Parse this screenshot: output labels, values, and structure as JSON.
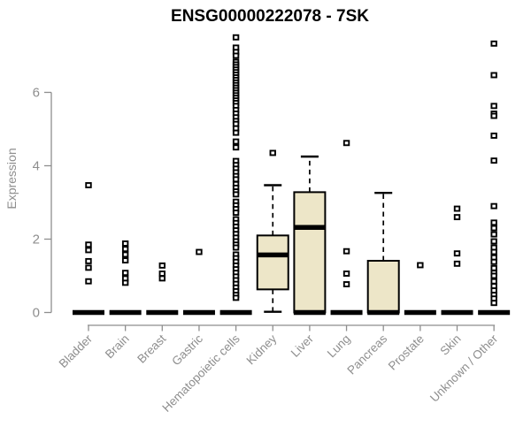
{
  "page": {
    "background": "#ffffff"
  },
  "chart_data": {
    "type": "boxplot",
    "title": "ENSG00000222078 - 7SK",
    "ylabel": "Expression",
    "xlabel": "",
    "ylim": [
      0,
      7.55
    ],
    "yticks": [
      0,
      2,
      4,
      6
    ],
    "grid": false,
    "legend": null,
    "colors": {
      "box_fill": "#EDE6C8",
      "box_stroke": "#000000",
      "median": "#000000",
      "whisker": "#000000",
      "outlier_fill": "#ffffff",
      "outlier_stroke": "#000000",
      "axis": "#8e8e8e",
      "tick_label": "#8e8e8e",
      "title": "#000000"
    },
    "categories": [
      "Bladder",
      "Brain",
      "Breast",
      "Gastric",
      "Hematopoietic cells",
      "Kidney",
      "Liver",
      "Lung",
      "Pancreas",
      "Prostate",
      "Skin",
      "Unknown / Other"
    ],
    "series": [
      {
        "name": "Bladder",
        "lo": 0,
        "q1": 0,
        "median": 0,
        "q3": 0,
        "hi": 0,
        "outliers": [
          3.47,
          1.85,
          1.7,
          1.4,
          1.22,
          0.85
        ]
      },
      {
        "name": "Brain",
        "lo": 0,
        "q1": 0,
        "median": 0,
        "q3": 0,
        "hi": 0,
        "outliers": [
          1.88,
          1.73,
          1.58,
          1.42,
          1.08,
          0.93,
          0.81
        ]
      },
      {
        "name": "Breast",
        "lo": 0,
        "q1": 0,
        "median": 0,
        "q3": 0,
        "hi": 0,
        "outliers": [
          1.28,
          1.06,
          0.93
        ]
      },
      {
        "name": "Gastric",
        "lo": 0,
        "q1": 0,
        "median": 0,
        "q3": 0,
        "hi": 0,
        "outliers": [
          1.65
        ]
      },
      {
        "name": "Hematopoietic cells",
        "lo": 0,
        "q1": 0,
        "median": 0,
        "q3": 0,
        "hi": 0,
        "outliers": [
          7.5,
          7.22,
          7.1,
          7.0,
          6.83,
          6.76,
          6.69,
          6.62,
          6.55,
          6.48,
          6.41,
          6.34,
          6.27,
          6.2,
          6.13,
          6.06,
          5.99,
          5.92,
          5.85,
          5.78,
          5.71,
          5.63,
          5.52,
          5.42,
          5.32,
          5.22,
          5.14,
          5.02,
          4.9,
          4.66,
          4.5,
          4.13,
          4.02,
          3.92,
          3.82,
          3.72,
          3.63,
          3.5,
          3.4,
          3.3,
          3.22,
          3.02,
          2.92,
          2.82,
          2.72,
          2.54,
          2.44,
          2.34,
          2.24,
          2.14,
          2.04,
          1.94,
          1.85,
          1.77,
          1.58,
          1.48,
          1.38,
          1.28,
          1.18,
          1.08,
          0.98,
          0.88,
          0.78,
          0.68,
          0.58,
          0.48,
          0.4
        ]
      },
      {
        "name": "Kidney",
        "lo": 0.02,
        "q1": 0.63,
        "median": 1.57,
        "q3": 2.1,
        "hi": 3.47,
        "outliers": [
          4.35
        ]
      },
      {
        "name": "Liver",
        "lo": 0,
        "q1": 0,
        "median": 2.32,
        "q3": 3.28,
        "hi": 4.25,
        "outliers": [],
        "zero_bar": true
      },
      {
        "name": "Lung",
        "lo": 0,
        "q1": 0,
        "median": 0,
        "q3": 0,
        "hi": 0,
        "outliers": [
          4.62,
          1.67,
          1.06,
          0.77
        ]
      },
      {
        "name": "Pancreas",
        "lo": 0,
        "q1": 0,
        "median": 0,
        "q3": 1.41,
        "hi": 3.26,
        "outliers": []
      },
      {
        "name": "Prostate",
        "lo": 0,
        "q1": 0,
        "median": 0,
        "q3": 0,
        "hi": 0,
        "outliers": [
          1.29
        ]
      },
      {
        "name": "Skin",
        "lo": 0,
        "q1": 0,
        "median": 0,
        "q3": 0,
        "hi": 0,
        "outliers": [
          2.83,
          2.6,
          1.61,
          1.33
        ]
      },
      {
        "name": "Unknown / Other",
        "lo": 0,
        "q1": 0,
        "median": 0,
        "q3": 0,
        "hi": 0,
        "outliers": [
          7.33,
          6.47,
          5.63,
          5.42,
          5.36,
          4.82,
          4.14,
          2.9,
          2.45,
          2.3,
          2.13,
          1.94,
          1.77,
          1.65,
          1.5,
          1.38,
          1.21,
          1.08,
          1.0,
          0.85,
          0.72,
          0.6,
          0.48,
          0.38,
          0.26
        ]
      }
    ]
  }
}
